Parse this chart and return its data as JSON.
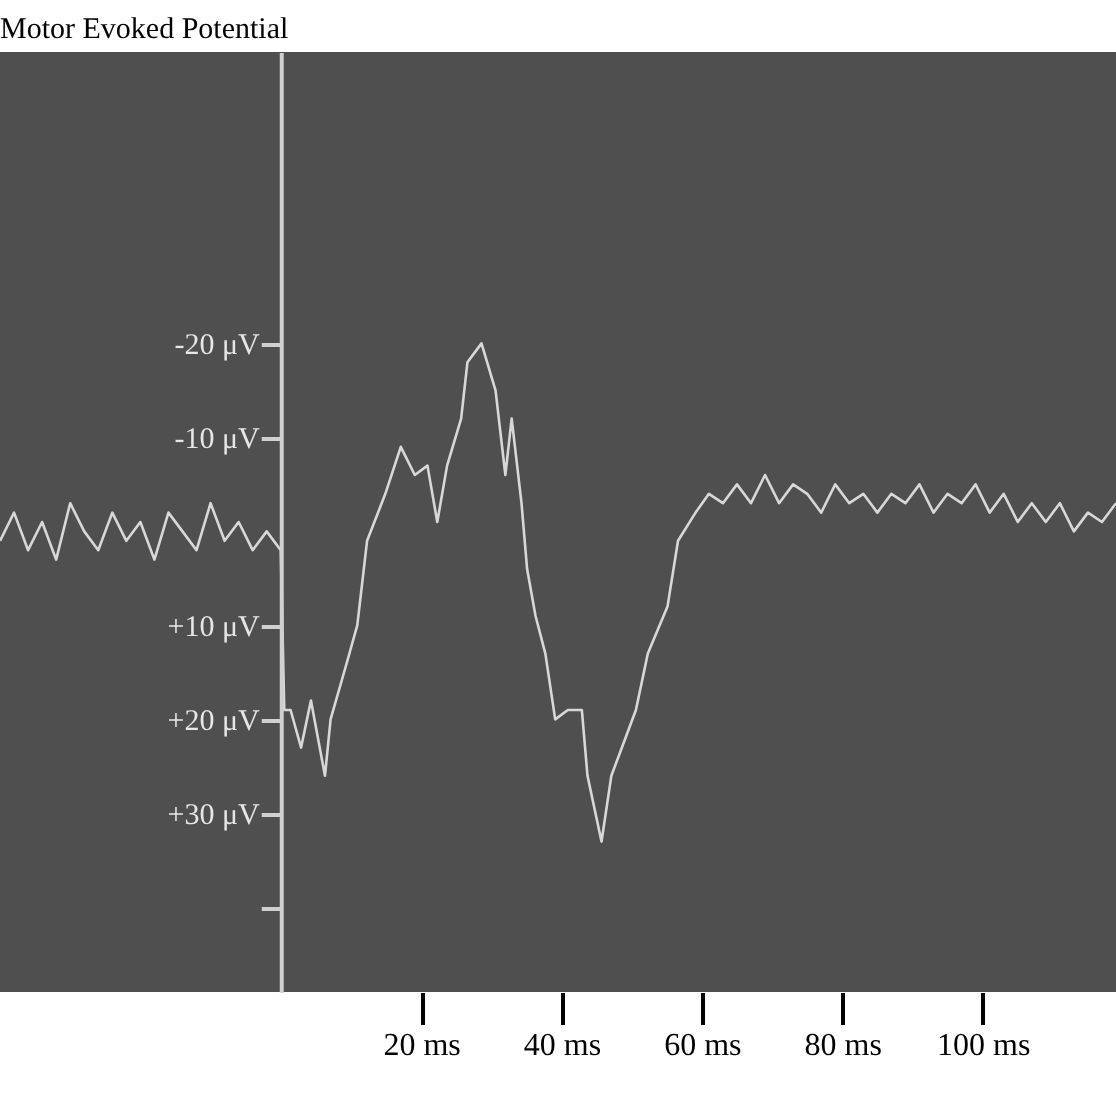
{
  "chart_data": {
    "type": "line",
    "title": "Motor Evoked Potential",
    "x": [
      -40,
      -38,
      -36,
      -34,
      -32,
      -30,
      -28,
      -26,
      -24,
      -22,
      -20,
      -18,
      -16,
      -14,
      -12,
      -10,
      -8,
      -6,
      -4,
      -2,
      0,
      0.5,
      1.4,
      2.9,
      4.3,
      6.3,
      7.1,
      9.4,
      10.9,
      12.3,
      14.9,
      17.1,
      19.1,
      20.9,
      22.3,
      23.7,
      25.7,
      26.6,
      28.6,
      30.6,
      32,
      32.9,
      34.3,
      35.1,
      36.3,
      37.7,
      39.1,
      40.9,
      42.9,
      43.7,
      45.7,
      47.1,
      49.1,
      50.6,
      52.3,
      55.1,
      56.6,
      59.1,
      61,
      63,
      65,
      67,
      69,
      71,
      73,
      75,
      77,
      79,
      81,
      83,
      85,
      87,
      89,
      91,
      93,
      95,
      97,
      99,
      101,
      103,
      105,
      107,
      109,
      111,
      113,
      115,
      117,
      119
    ],
    "series": [
      {
        "color": "#d8d8d8",
        "values": [
          1,
          -2,
          2,
          -1,
          3,
          -3,
          0,
          2,
          -2,
          1,
          -1,
          3,
          -2,
          0,
          2,
          -3,
          1,
          -1,
          2,
          0,
          2,
          19,
          19,
          23,
          18,
          26,
          20,
          14,
          10,
          1,
          -4,
          -9,
          -6,
          -7,
          -1,
          -7,
          -12,
          -18,
          -20,
          -15,
          -6,
          -12,
          -3,
          4,
          9,
          13,
          20,
          19,
          19,
          26,
          33,
          26,
          22,
          19,
          13,
          8,
          1,
          -2,
          -4,
          -3,
          -5,
          -3,
          -6,
          -3,
          -5,
          -4,
          -2,
          -5,
          -3,
          -4,
          -2,
          -4,
          -3,
          -5,
          -2,
          -4,
          -3,
          -5,
          -2,
          -4,
          -1,
          -3,
          -1,
          -3,
          0,
          -2,
          -1,
          -3
        ]
      }
    ],
    "xlim": [
      -40,
      119
    ],
    "ylim": [
      49,
      -51
    ],
    "xticks": [
      {
        "value": 20,
        "label": "20 ms"
      },
      {
        "value": 40,
        "label": "40 ms"
      },
      {
        "value": 60,
        "label": "60 ms"
      },
      {
        "value": 80,
        "label": "80 ms"
      },
      {
        "value": 100,
        "label": "100 ms"
      }
    ],
    "yticks": [
      {
        "value": -20,
        "label": "-20 μV"
      },
      {
        "value": -10,
        "label": "-10 μV"
      },
      {
        "value": 10,
        "label": "+10 μV"
      },
      {
        "value": 20,
        "label": "+20 μV"
      },
      {
        "value": 30,
        "label": "+30 μV"
      },
      {
        "value": 40,
        "label": null
      }
    ],
    "grid": false,
    "marker": "none",
    "line_style": "solid"
  }
}
